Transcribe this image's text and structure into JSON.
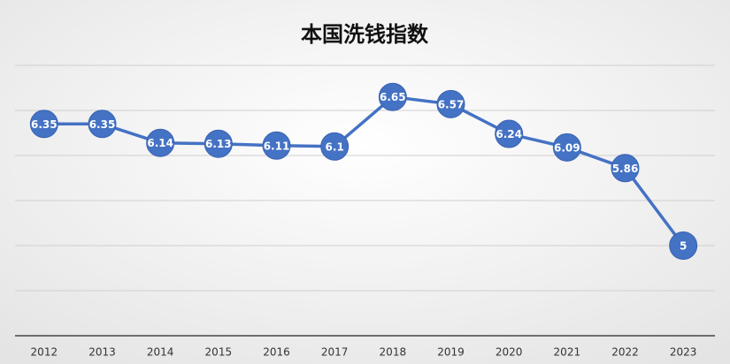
{
  "chart_data": {
    "type": "line",
    "title": "本国洗钱指数",
    "categories": [
      "2012",
      "2013",
      "2014",
      "2015",
      "2016",
      "2017",
      "2018",
      "2019",
      "2020",
      "2021",
      "2022",
      "2023"
    ],
    "values": [
      6.35,
      6.35,
      6.14,
      6.13,
      6.11,
      6.1,
      6.65,
      6.57,
      6.24,
      6.09,
      5.86,
      5
    ],
    "color": "#4472c4",
    "ylim": [
      4,
      7
    ],
    "yticks": [
      4.5,
      5,
      5.5,
      6,
      6.5,
      7
    ],
    "grid": true
  }
}
